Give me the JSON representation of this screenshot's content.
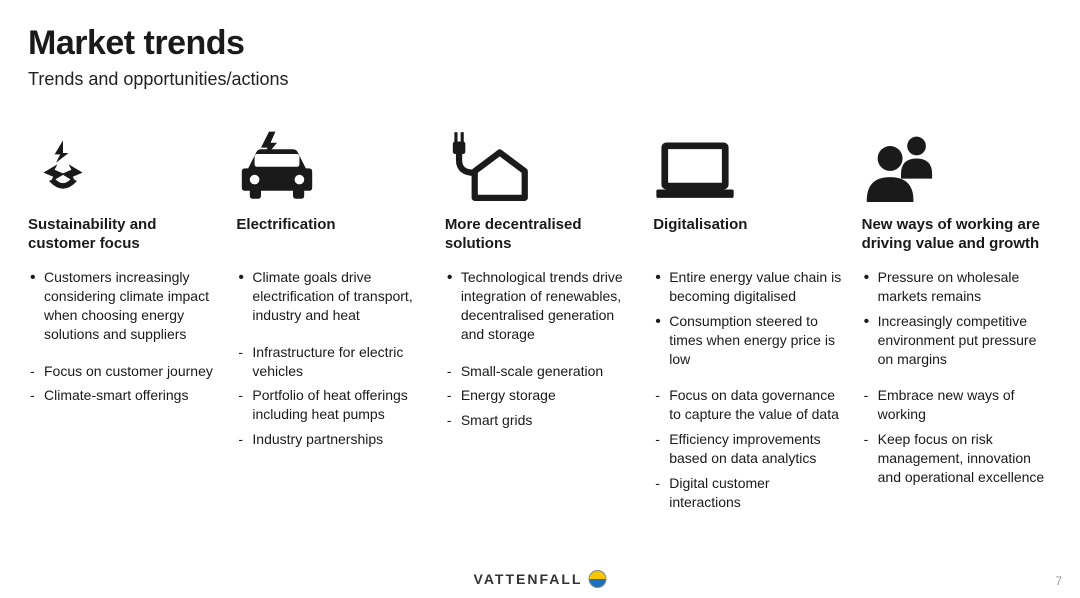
{
  "title": "Market trends",
  "subtitle": "Trends and opportunities/actions",
  "brand": "VATTENFALL",
  "page_number": "7",
  "icon_color": "#1a1a1a",
  "columns": [
    {
      "icon": "recycle",
      "heading": "Sustainability and customer focus",
      "bullets": [
        "Customers increasingly considering climate impact when choosing energy solutions and suppliers"
      ],
      "dashes": [
        "Focus on customer journey",
        "Climate-smart offerings"
      ]
    },
    {
      "icon": "ev-car",
      "heading": "Electrification",
      "bullets": [
        "Climate goals drive electrification of transport, industry and heat"
      ],
      "dashes": [
        "Infrastructure for electric vehicles",
        "Portfolio of heat offerings including heat pumps",
        "Industry partnerships"
      ]
    },
    {
      "icon": "plug-house",
      "heading": "More decentralised solutions",
      "bullets": [
        "Technological trends drive integration of renewables, decentralised generation and storage"
      ],
      "dashes": [
        "Small-scale generation",
        "Energy storage",
        "Smart grids"
      ]
    },
    {
      "icon": "laptop",
      "heading": "Digitalisation",
      "bullets": [
        "Entire energy value chain is becoming digitalised",
        "Consumption steered to times when energy price is low"
      ],
      "dashes": [
        "Focus on data gover­nance to capture the value of data",
        "Efficiency improve­ments based on data analytics",
        "Digital customer interactions"
      ]
    },
    {
      "icon": "people",
      "heading": "New ways of working are driving value and growth",
      "bullets": [
        "Pressure on wholesale markets remains",
        "Increasingly competitive environment put pressure on margins"
      ],
      "dashes": [
        "Embrace new ways of working",
        "Keep focus on risk management, innovation and operational excellence"
      ]
    }
  ]
}
